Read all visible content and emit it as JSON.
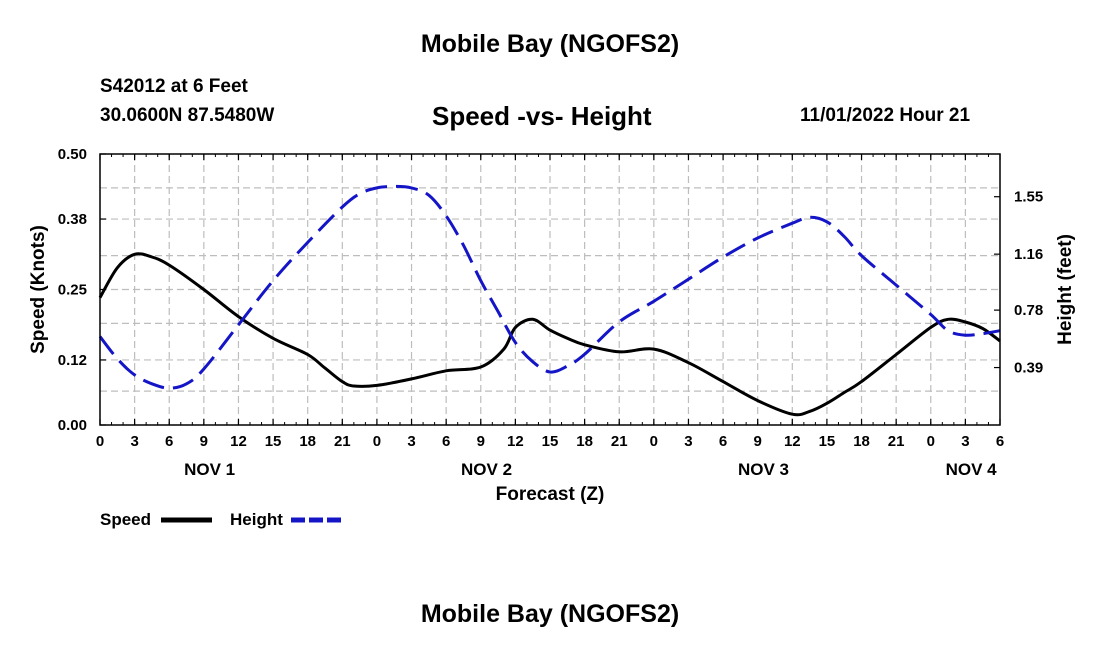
{
  "header": {
    "title": "Mobile Bay (NGOFS2)",
    "station": "S42012 at 6 Feet",
    "coords": "30.0600N  87.5480W",
    "chart_title": "Speed -vs- Height",
    "datetime": "11/01/2022 Hour 21"
  },
  "footer": {
    "title": "Mobile Bay (NGOFS2)"
  },
  "legend": {
    "speed_label": "Speed",
    "height_label": "Height"
  },
  "colors": {
    "speed": "#000000",
    "height": "#1515c8",
    "grid": "#bdbdbd"
  },
  "chart_data": {
    "type": "line",
    "title": "Speed -vs- Height",
    "xlabel": "Forecast (Z)",
    "ylabel": "Speed (Knots)",
    "y2label": "Height (feet)",
    "xlim": [
      0,
      78
    ],
    "ylim": [
      0,
      0.5
    ],
    "y2lim": [
      0,
      1.84
    ],
    "x_ticks": [
      0,
      3,
      6,
      9,
      12,
      15,
      18,
      21,
      24,
      27,
      30,
      33,
      36,
      39,
      42,
      45,
      48,
      51,
      54,
      57,
      60,
      63,
      66,
      69,
      72,
      75,
      78
    ],
    "x_tick_labels": [
      "0",
      "3",
      "6",
      "9",
      "12",
      "15",
      "18",
      "21",
      "0",
      "3",
      "6",
      "9",
      "12",
      "15",
      "18",
      "21",
      "0",
      "3",
      "6",
      "9",
      "12",
      "15",
      "18",
      "21",
      "0",
      "3",
      "6"
    ],
    "day_labels": [
      {
        "x": 9.5,
        "label": "NOV 1"
      },
      {
        "x": 33.5,
        "label": "NOV 2"
      },
      {
        "x": 57.5,
        "label": "NOV 3"
      },
      {
        "x": 75.5,
        "label": "NOV 4"
      }
    ],
    "y_ticks": [
      0.0,
      0.12,
      0.25,
      0.38,
      0.5
    ],
    "y_tick_labels": [
      "0.00",
      "0.12",
      "0.25",
      "0.38",
      "0.50"
    ],
    "y2_ticks": [
      0.39,
      0.78,
      1.16,
      1.55
    ],
    "y2_tick_labels": [
      "0.39",
      "0.78",
      "1.16",
      "1.55"
    ],
    "series": [
      {
        "name": "Speed",
        "axis": "left",
        "style": "solid",
        "x": [
          0,
          1.5,
          3,
          4.5,
          6,
          9,
          12,
          15,
          18,
          19.5,
          21,
          22,
          24,
          27,
          30,
          33,
          35,
          36,
          37.5,
          39,
          40.5,
          42,
          45,
          48,
          51,
          54,
          57,
          60,
          61.5,
          63,
          64.5,
          66,
          69,
          72,
          73.5,
          75,
          76.5,
          78
        ],
        "values": [
          0.235,
          0.29,
          0.315,
          0.31,
          0.295,
          0.25,
          0.2,
          0.16,
          0.13,
          0.105,
          0.08,
          0.072,
          0.073,
          0.085,
          0.1,
          0.107,
          0.14,
          0.18,
          0.195,
          0.175,
          0.16,
          0.148,
          0.135,
          0.14,
          0.115,
          0.08,
          0.045,
          0.02,
          0.025,
          0.04,
          0.06,
          0.08,
          0.13,
          0.18,
          0.195,
          0.19,
          0.178,
          0.155
        ]
      },
      {
        "name": "Height",
        "axis": "right",
        "style": "dashed",
        "x": [
          0,
          1.5,
          3,
          4.5,
          6,
          7.5,
          9,
          12,
          15,
          18,
          21,
          22.5,
          24,
          25.5,
          27,
          28.5,
          30,
          31.5,
          33,
          34.5,
          36,
          37.5,
          39,
          40.5,
          42,
          45,
          48,
          51,
          54,
          57,
          60,
          61.5,
          63,
          64.5,
          66,
          69,
          72,
          73.5,
          75,
          76.5,
          78
        ],
        "values": [
          0.6,
          0.45,
          0.34,
          0.28,
          0.25,
          0.28,
          0.38,
          0.68,
          0.98,
          1.24,
          1.48,
          1.57,
          1.61,
          1.62,
          1.61,
          1.56,
          1.42,
          1.22,
          0.98,
          0.77,
          0.56,
          0.43,
          0.36,
          0.4,
          0.48,
          0.7,
          0.84,
          0.99,
          1.14,
          1.27,
          1.37,
          1.41,
          1.38,
          1.28,
          1.15,
          0.95,
          0.75,
          0.64,
          0.61,
          0.62,
          0.64
        ]
      }
    ]
  }
}
